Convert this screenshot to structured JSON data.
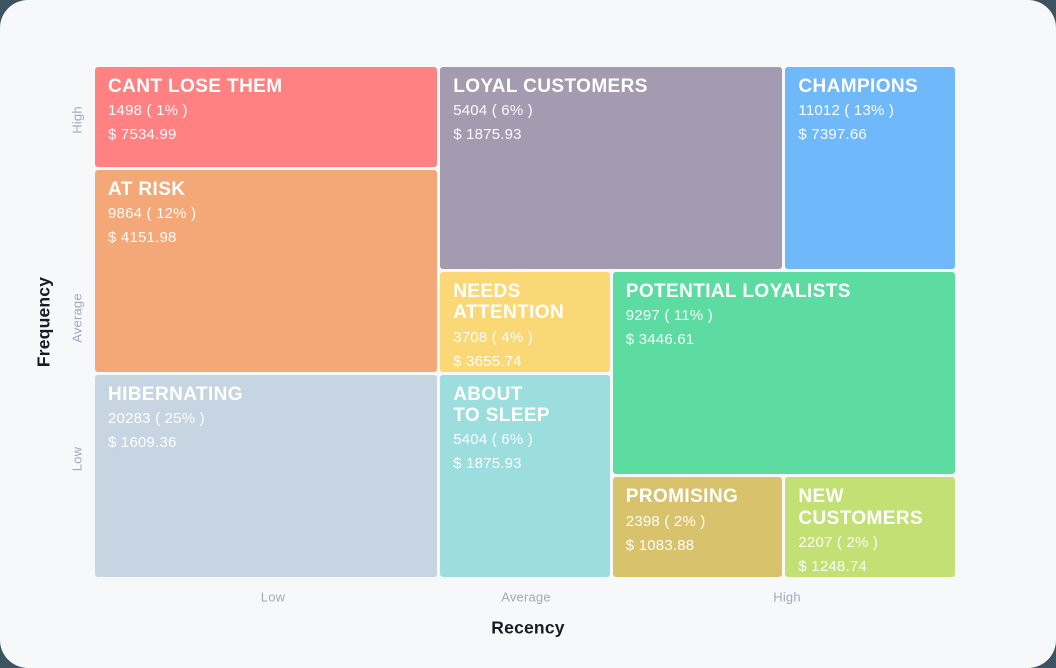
{
  "page": {
    "background_color": "#3d5362",
    "card_background_color": "#f7f8f9"
  },
  "chart_data": {
    "type": "treemap",
    "subtype": "rfm-segment-grid",
    "x_axis": {
      "label": "Recency",
      "ticks": [
        "Low",
        "Average",
        "High"
      ]
    },
    "y_axis": {
      "label": "Frequency",
      "ticks": [
        "High",
        "Average",
        "Low"
      ]
    },
    "grid": {
      "columns": 5,
      "rows": 5
    },
    "segments": [
      {
        "name": "CANT LOSE THEM",
        "title": "CANT LOSE THEM",
        "count": 1498,
        "percent": 1,
        "monetary": 7534.99,
        "count_label": "1498 ( 1% )",
        "monetary_label": "$ 7534.99",
        "color": "#ff8181",
        "col": "1 / 3",
        "row": "1 / 2"
      },
      {
        "name": "LOYAL CUSTOMERS",
        "title": "LOYAL CUSTOMERS",
        "count": 5404,
        "percent": 6,
        "monetary": 1875.93,
        "count_label": "5404 ( 6% )",
        "monetary_label": "$ 1875.93",
        "color": "#a49bb0",
        "col": "3 / 5",
        "row": "1 / 3"
      },
      {
        "name": "CHAMPIONS",
        "title": "CHAMPIONS",
        "count": 11012,
        "percent": 13,
        "monetary": 7397.66,
        "count_label": "11012 ( 13% )",
        "monetary_label": "$ 7397.66",
        "color": "#6fb9fb",
        "col": "5 / 6",
        "row": "1 / 3"
      },
      {
        "name": "AT RISK",
        "title": "AT RISK",
        "count": 9864,
        "percent": 12,
        "monetary": 4151.98,
        "count_label": "9864 ( 12% )",
        "monetary_label": "$ 4151.98",
        "color": "#f4a878",
        "col": "1 / 3",
        "row": "2 / 4"
      },
      {
        "name": "NEEDS ATTENTION",
        "title": "NEEDS\nATTENTION",
        "count": 3708,
        "percent": 4,
        "monetary": 3655.74,
        "count_label": "3708 ( 4% )",
        "monetary_label": "$ 3655.74",
        "color": "#fbd876",
        "col": "3 / 4",
        "row": "3 / 4"
      },
      {
        "name": "POTENTIAL LOYALISTS",
        "title": "POTENTIAL LOYALISTS",
        "count": 9297,
        "percent": 11,
        "monetary": 3446.61,
        "count_label": "9297 ( 11% )",
        "monetary_label": "$ 3446.61",
        "color": "#5ddca2",
        "col": "4 / 6",
        "row": "3 / 5"
      },
      {
        "name": "HIBERNATING",
        "title": "HIBERNATING",
        "count": 20283,
        "percent": 25,
        "monetary": 1609.36,
        "count_label": "20283 ( 25% )",
        "monetary_label": "$ 1609.36",
        "color": "#c7d5e2",
        "col": "1 / 3",
        "row": "4 / 6"
      },
      {
        "name": "ABOUT TO SLEEP",
        "title": "ABOUT\nTO SLEEP",
        "count": 5404,
        "percent": 6,
        "monetary": 1875.93,
        "count_label": "5404 ( 6% )",
        "monetary_label": "$ 1875.93",
        "color": "#9cdede",
        "col": "3 / 4",
        "row": "4 / 6"
      },
      {
        "name": "PROMISING",
        "title": "PROMISING",
        "count": 2398,
        "percent": 2,
        "monetary": 1083.88,
        "count_label": "2398 ( 2% )",
        "monetary_label": "$ 1083.88",
        "color": "#d8c36c",
        "col": "4 / 5",
        "row": "5 / 6"
      },
      {
        "name": "NEW CUSTOMERS",
        "title": "NEW\nCUSTOMERS",
        "count": 2207,
        "percent": 2,
        "monetary": 1248.74,
        "count_label": "2207 ( 2% )",
        "monetary_label": "$ 1248.74",
        "color": "#c2e073",
        "col": "5 / 6",
        "row": "5 / 6"
      }
    ]
  }
}
